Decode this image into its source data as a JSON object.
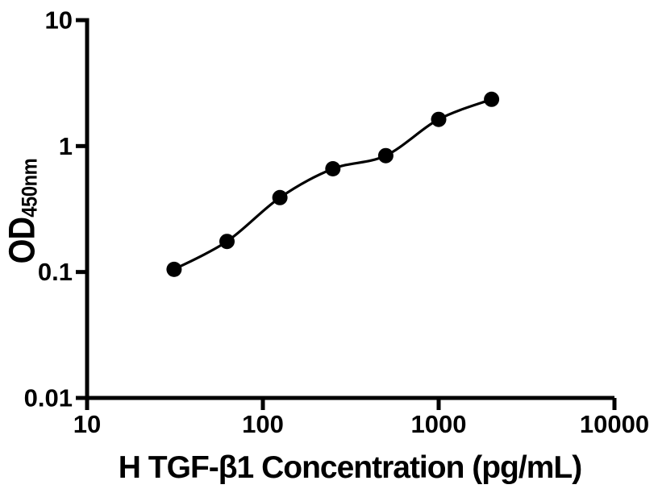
{
  "chart_data": {
    "type": "scatter",
    "title": "",
    "xlabel": "H TGF-β1 Concentration (pg/mL)",
    "ylabel": "OD",
    "ylabel_sub": "450nm",
    "x_scale": "log",
    "y_scale": "log",
    "xlim": [
      10,
      10000
    ],
    "ylim": [
      0.01,
      10
    ],
    "x_ticks": [
      10,
      100,
      1000,
      10000
    ],
    "x_tick_labels": [
      "10",
      "100",
      "1000",
      "10000"
    ],
    "y_ticks": [
      10,
      1,
      0.1,
      0.01
    ],
    "y_tick_labels": [
      "10",
      "1",
      "0.1",
      "0.01"
    ],
    "grid": false,
    "legend": "none",
    "series": [
      {
        "x": [
          31.25,
          62.5,
          125,
          250,
          500,
          1000,
          2000
        ],
        "y": [
          0.105,
          0.175,
          0.39,
          0.66,
          0.84,
          1.63,
          2.35
        ],
        "marker": "circle",
        "marker_color": "#000000",
        "line_color": "#000000"
      }
    ],
    "axis_color": "#000000",
    "text_color": "#000000",
    "background": "#ffffff"
  }
}
